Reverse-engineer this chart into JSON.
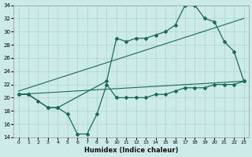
{
  "xlabel": "Humidex (Indice chaleur)",
  "bg_color": "#cceae7",
  "grid_color": "#aad4d0",
  "line_color": "#1a6b5a",
  "xlim": [
    -0.5,
    23.5
  ],
  "ylim": [
    14,
    34
  ],
  "xticks": [
    0,
    1,
    2,
    3,
    4,
    5,
    6,
    7,
    8,
    9,
    10,
    11,
    12,
    13,
    14,
    15,
    16,
    17,
    18,
    19,
    20,
    21,
    22,
    23
  ],
  "yticks": [
    14,
    16,
    18,
    20,
    22,
    24,
    26,
    28,
    30,
    32,
    34
  ],
  "curve1_x": [
    0,
    1,
    2,
    3,
    4,
    5,
    6,
    7,
    8,
    9,
    10,
    11,
    12,
    13,
    14,
    15,
    16,
    17,
    18,
    19,
    20,
    21,
    22,
    23
  ],
  "curve1_y": [
    20.5,
    20.5,
    19.5,
    18.5,
    18.5,
    17.5,
    14.5,
    14.5,
    17.5,
    22.0,
    20.0,
    20.0,
    20.0,
    20.0,
    20.5,
    20.5,
    21.0,
    21.5,
    21.5,
    21.5,
    22.0,
    22.0,
    22.0,
    22.5
  ],
  "curve2_x": [
    0,
    1,
    3,
    4,
    9,
    10,
    11,
    12,
    13,
    14,
    15,
    16,
    17,
    18,
    19,
    20,
    21,
    22,
    23
  ],
  "curve2_y": [
    20.5,
    20.5,
    18.5,
    18.5,
    22.5,
    29.0,
    28.5,
    29.0,
    29.0,
    29.5,
    30.0,
    31.0,
    34.0,
    34.0,
    32.0,
    31.5,
    28.5,
    27.0,
    22.5
  ],
  "regline1_x": [
    0,
    23
  ],
  "regline1_y": [
    20.5,
    22.5
  ],
  "regline2_x": [
    0,
    23
  ],
  "regline2_y": [
    21.0,
    32.0
  ]
}
